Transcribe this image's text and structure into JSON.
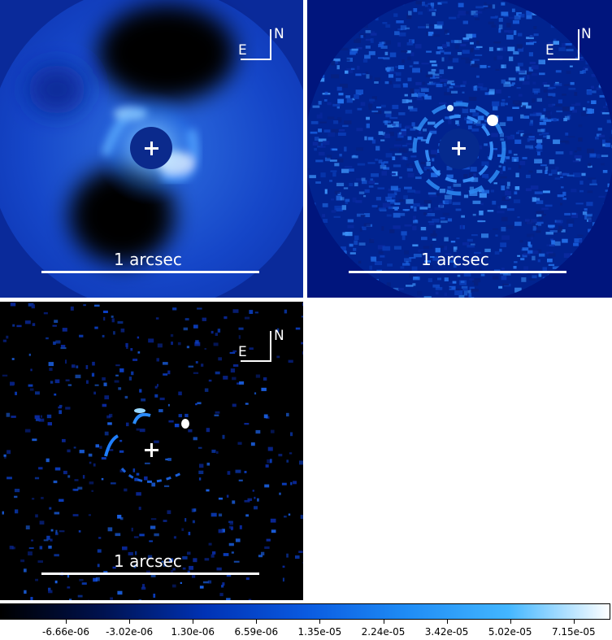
{
  "panels": [
    {
      "scale_label": "1 arcsec",
      "compass_east": "E",
      "compass_north": "N"
    },
    {
      "scale_label": "1 arcsec",
      "compass_east": "E",
      "compass_north": "N"
    },
    {
      "scale_label": "1 arcsec",
      "compass_east": "E",
      "compass_north": "N"
    }
  ],
  "colorbar": {
    "tick_labels": [
      "-6.66e-06",
      "-3.02e-06",
      "1.30e-06",
      "6.59e-06",
      "1.35e-05",
      "2.24e-05",
      "3.42e-05",
      "5.02e-05",
      "7.15e-05"
    ],
    "colormap": [
      "#000000",
      "#00124f",
      "#0032b4",
      "#0a5ae0",
      "#1f8cf5",
      "#43b6ff",
      "#ffffff"
    ]
  },
  "colors": {
    "annotation": "#ffffff",
    "panel_mid_blue": "#0a2aa0",
    "panel_dark_blue": "#03157a",
    "panel_black": "#000000"
  }
}
